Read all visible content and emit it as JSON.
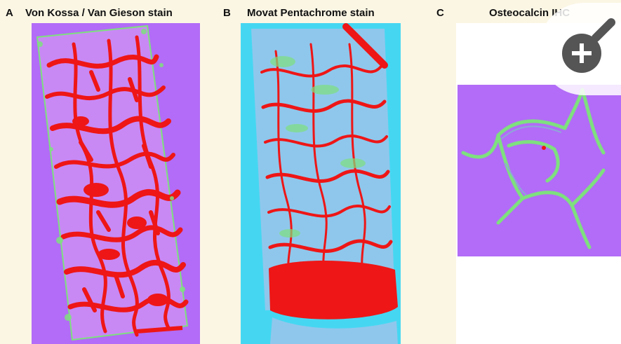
{
  "panels": [
    {
      "letter": "A",
      "title": "Von Kossa / Van Gieson stain"
    },
    {
      "letter": "B",
      "title": "Movat Pentachrome stain"
    },
    {
      "letter": "C",
      "title": "Osteocalcin IHC"
    }
  ],
  "zoom_button": {
    "icon": "magnifier-plus-icon"
  },
  "colors": {
    "background": "#fbf6e4",
    "purple": "#b26cf7",
    "cyan": "#45d7f2",
    "red": "#ee1616",
    "green": "#7ee07e",
    "gray_blue": "#8fa6d8"
  }
}
